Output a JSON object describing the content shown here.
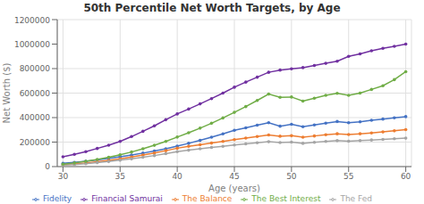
{
  "chart_data": {
    "type": "line",
    "title": "50th Percentile Net Worth Targets, by Age",
    "xlabel": "Age (years)",
    "ylabel": "Net Worth ($)",
    "x": [
      30,
      31,
      32,
      33,
      34,
      35,
      36,
      37,
      38,
      39,
      40,
      41,
      42,
      43,
      44,
      45,
      46,
      47,
      48,
      49,
      50,
      51,
      52,
      53,
      54,
      55,
      56,
      57,
      58,
      59,
      60
    ],
    "series": [
      {
        "name": "Fidelity",
        "color": "#4472C4",
        "marker": "circle",
        "values": [
          27000,
          35000,
          44000,
          55000,
          67000,
          80000,
          94000,
          110000,
          127000,
          146000,
          167000,
          190000,
          214000,
          240000,
          267000,
          296000,
          316000,
          338000,
          358000,
          330000,
          345000,
          325000,
          340000,
          355000,
          368000,
          358000,
          366000,
          378000,
          388000,
          398000,
          408000
        ]
      },
      {
        "name": "The Balance",
        "color": "#ED7D31",
        "marker": "circle",
        "values": [
          15000,
          22000,
          30000,
          40000,
          51000,
          64000,
          78000,
          94000,
          111000,
          130000,
          150000,
          165000,
          178000,
          192000,
          206000,
          220000,
          233000,
          246000,
          258000,
          248000,
          252000,
          240000,
          250000,
          260000,
          268000,
          262000,
          268000,
          275000,
          283000,
          292000,
          302000
        ]
      },
      {
        "name": "The Fed",
        "color": "#A5A5A5",
        "marker": "circle",
        "values": [
          12000,
          17000,
          24000,
          32000,
          41000,
          52000,
          63000,
          76000,
          90000,
          106000,
          122000,
          134000,
          145000,
          156000,
          166000,
          176000,
          186000,
          195000,
          203000,
          196000,
          200000,
          190000,
          198000,
          206000,
          212000,
          207000,
          212000,
          217000,
          222000,
          227000,
          232000
        ]
      },
      {
        "name": "The Best Interest",
        "color": "#70AD47",
        "marker": "circle",
        "values": [
          20000,
          30000,
          43000,
          58000,
          76000,
          96000,
          119000,
          145000,
          174000,
          206000,
          241000,
          276000,
          314000,
          354000,
          397000,
          443000,
          490000,
          540000,
          592000,
          566000,
          568000,
          535000,
          558000,
          582000,
          598000,
          582000,
          600000,
          630000,
          660000,
          710000,
          775000
        ]
      },
      {
        "name": "Financial Samurai",
        "color": "#7030A0",
        "marker": "circle",
        "values": [
          80000,
          100000,
          122000,
          148000,
          175000,
          205000,
          245000,
          288000,
          333000,
          383000,
          430000,
          470000,
          512000,
          555000,
          600000,
          648000,
          690000,
          730000,
          770000,
          788000,
          798000,
          808000,
          825000,
          843000,
          860000,
          900000,
          920000,
          945000,
          965000,
          982000,
          1000000
        ]
      }
    ],
    "xlim": [
      29.5,
      60.5
    ],
    "xticks": [
      30,
      35,
      40,
      45,
      50,
      55,
      60
    ],
    "ylim": [
      0,
      1200000
    ],
    "yticks": [
      0,
      200000,
      400000,
      600000,
      800000,
      1000000,
      1200000
    ],
    "grid": true,
    "legend": "bottom"
  }
}
